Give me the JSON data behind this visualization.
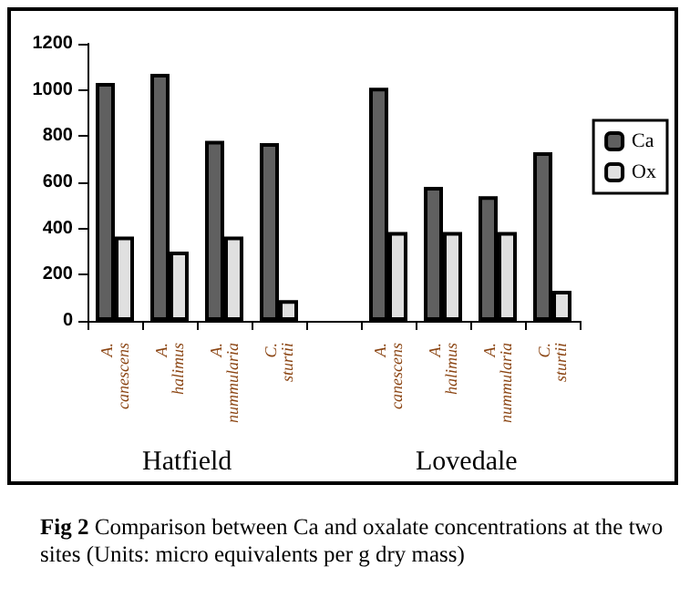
{
  "chart_data": {
    "type": "bar",
    "categories": [
      "A. canescens",
      "A. halimus",
      "A. nummularia",
      "C. sturtii",
      null,
      "A. canescens",
      "A. halimus",
      "A. nummularia",
      "C. sturtii"
    ],
    "series": [
      {
        "name": "Ca",
        "color": "#606060",
        "values": [
          1030,
          1070,
          780,
          770,
          null,
          1010,
          580,
          540,
          730
        ]
      },
      {
        "name": "Ox",
        "color": "#e0e0e0",
        "values": [
          365,
          300,
          365,
          90,
          null,
          385,
          385,
          385,
          130
        ]
      }
    ],
    "ylim": [
      0,
      1200
    ],
    "yticks": [
      0,
      200,
      400,
      600,
      800,
      1000,
      1200
    ],
    "grid": false,
    "legend": "right",
    "annotations": [
      "Hatfield",
      "Lovedale",
      "Fig 2 Comparison between Ca and oxalate concentrations at the two sites (Units: micro equivalents per g dry mass)"
    ]
  }
}
